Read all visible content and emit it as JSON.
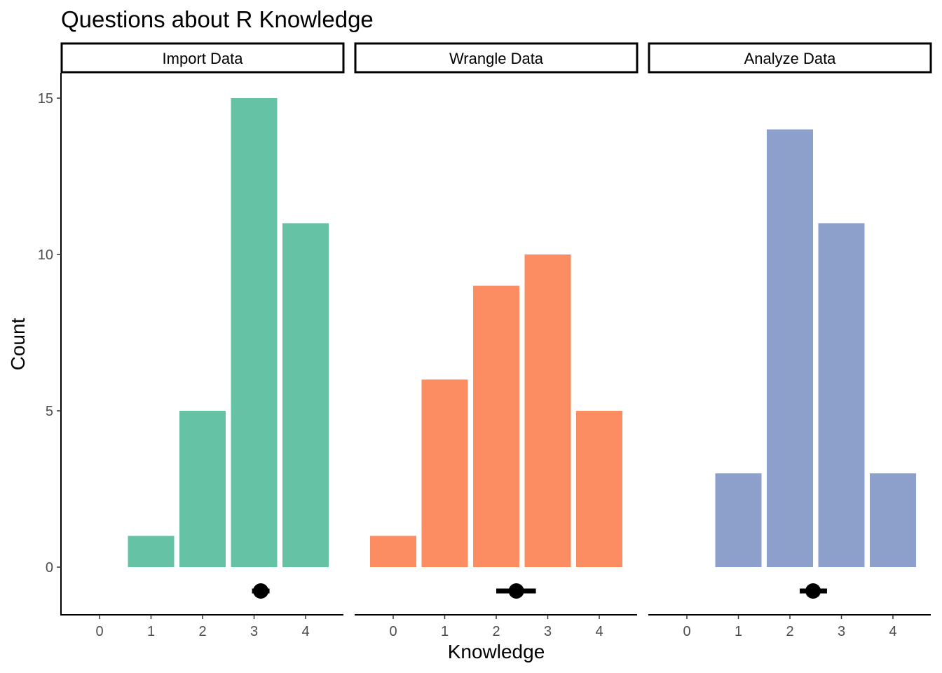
{
  "chart_data": {
    "type": "bar",
    "title": "Questions about R Knowledge",
    "xlabel": "Knowledge",
    "ylabel": "Count",
    "x_categories": [
      0,
      1,
      2,
      3,
      4
    ],
    "x_tick_labels": [
      "0",
      "1",
      "2",
      "3",
      "4"
    ],
    "y_ticks": [
      0,
      5,
      10,
      15
    ],
    "y_tick_labels": [
      "0",
      "5",
      "10",
      "15"
    ],
    "ylim": [
      -1.5,
      16
    ],
    "grid": false,
    "legend": "none",
    "facets": [
      {
        "name": "Import Data",
        "color": "#66c2a5",
        "bars": [
          {
            "x": 1,
            "count": 1
          },
          {
            "x": 2,
            "count": 5
          },
          {
            "x": 3,
            "count": 15
          },
          {
            "x": 4,
            "count": 11
          }
        ],
        "mean": 3.13,
        "interval": [
          2.96,
          3.3
        ]
      },
      {
        "name": "Wrangle Data",
        "color": "#fc8d62",
        "bars": [
          {
            "x": 0,
            "count": 1
          },
          {
            "x": 1,
            "count": 6
          },
          {
            "x": 2,
            "count": 9
          },
          {
            "x": 3,
            "count": 10
          },
          {
            "x": 4,
            "count": 5
          }
        ],
        "mean": 2.39,
        "interval": [
          2.0,
          2.77
        ]
      },
      {
        "name": "Analyze Data",
        "color": "#8da0cb",
        "bars": [
          {
            "x": 1,
            "count": 3
          },
          {
            "x": 2,
            "count": 14
          },
          {
            "x": 3,
            "count": 11
          },
          {
            "x": 4,
            "count": 3
          }
        ],
        "mean": 2.45,
        "interval": [
          2.19,
          2.72
        ]
      }
    ]
  }
}
